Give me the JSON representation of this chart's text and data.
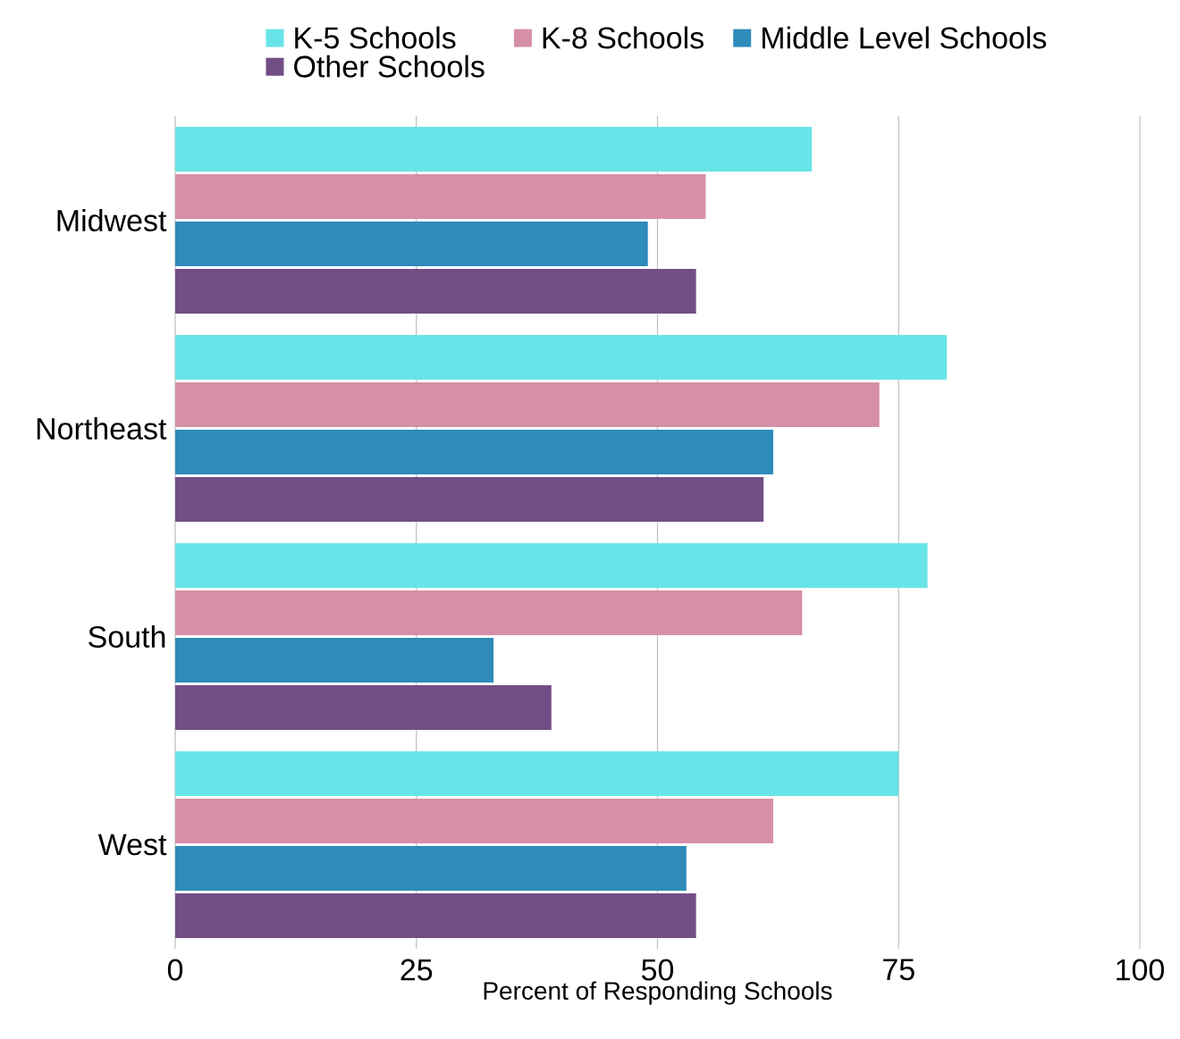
{
  "chart_data": {
    "type": "bar",
    "orientation": "horizontal",
    "xlabel": "Percent of Responding Schools",
    "categories": [
      "Midwest",
      "Northeast",
      "South",
      "West"
    ],
    "series": [
      {
        "name": "K-5 Schools",
        "color": "#68e4e8",
        "values": [
          66,
          80,
          78,
          75
        ]
      },
      {
        "name": "K-8 Schools",
        "color": "#d68fa8",
        "values": [
          55,
          73,
          65,
          62
        ]
      },
      {
        "name": "Middle Level Schools",
        "color": "#2e8bba",
        "values": [
          49,
          62,
          33,
          53
        ]
      },
      {
        "name": "Other Schools",
        "color": "#724e86",
        "values": [
          54,
          61,
          39,
          54
        ]
      }
    ],
    "xlim": [
      0,
      100
    ],
    "xticks": [
      0,
      25,
      50,
      75,
      100
    ],
    "grid": "x",
    "legend": "top"
  }
}
